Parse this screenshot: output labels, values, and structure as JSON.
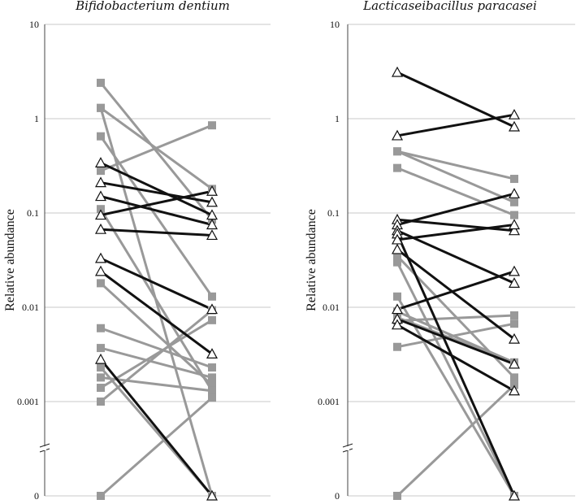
{
  "chart_data": [
    {
      "type": "line",
      "title": "Bifidobacterium dentium",
      "xlabel": "",
      "ylabel": "Relative abundance",
      "y_scale": "log (broken axis, zero shown below break)",
      "y_ticks": [
        "0",
        "0.001",
        "0.01",
        "0.1",
        "1",
        "10"
      ],
      "ylim": [
        0,
        10
      ],
      "grid": true,
      "colors": {
        "triangle_series": "#111111",
        "square_series": "#999999",
        "marker_fill": "#ffffff"
      },
      "series": [
        {
          "marker": "square",
          "values": [
            2.4,
            0.085
          ]
        },
        {
          "marker": "square",
          "values": [
            1.3,
            0
          ]
        },
        {
          "marker": "square",
          "values": [
            1.3,
            0.18
          ]
        },
        {
          "marker": "square",
          "values": [
            0.65,
            0.013
          ]
        },
        {
          "marker": "square",
          "values": [
            0.28,
            0.85
          ]
        },
        {
          "marker": "square",
          "values": [
            0.11,
            0.0013
          ]
        },
        {
          "marker": "square",
          "values": [
            0.018,
            0.0015
          ]
        },
        {
          "marker": "square",
          "values": [
            0.006,
            0.0023
          ]
        },
        {
          "marker": "square",
          "values": [
            0.0037,
            0.0018
          ]
        },
        {
          "marker": "square",
          "values": [
            0.0023,
            0
          ]
        },
        {
          "marker": "square",
          "values": [
            0.0018,
            0.0013
          ]
        },
        {
          "marker": "square",
          "values": [
            0.0014,
            0.0073
          ]
        },
        {
          "marker": "square",
          "values": [
            0.001,
            0.0093
          ]
        },
        {
          "marker": "square",
          "values": [
            0,
            0.0011
          ]
        },
        {
          "marker": "triangle",
          "values": [
            0.34,
            0.095
          ]
        },
        {
          "marker": "triangle",
          "values": [
            0.21,
            0.13
          ]
        },
        {
          "marker": "triangle",
          "values": [
            0.15,
            0.075
          ]
        },
        {
          "marker": "triangle",
          "values": [
            0.095,
            0.17
          ]
        },
        {
          "marker": "triangle",
          "values": [
            0.067,
            0.058
          ]
        },
        {
          "marker": "triangle",
          "values": [
            0.033,
            0.0095
          ]
        },
        {
          "marker": "triangle",
          "values": [
            0.024,
            0.0032
          ]
        },
        {
          "marker": "triangle",
          "values": [
            0.0028,
            0
          ]
        }
      ]
    },
    {
      "type": "line",
      "title": "Lacticaseibacillus paracasei",
      "xlabel": "",
      "ylabel": "Relative abundance",
      "y_scale": "log (broken axis, zero shown below break)",
      "y_ticks": [
        "0",
        "0.001",
        "0.01",
        "0.1",
        "1",
        "10"
      ],
      "ylim": [
        0,
        10
      ],
      "grid": true,
      "colors": {
        "triangle_series": "#111111",
        "square_series": "#999999",
        "marker_fill": "#ffffff"
      },
      "series": [
        {
          "marker": "square",
          "values": [
            0.45,
            0.23
          ]
        },
        {
          "marker": "square",
          "values": [
            0.45,
            0.13
          ]
        },
        {
          "marker": "square",
          "values": [
            0.3,
            0.095
          ]
        },
        {
          "marker": "square",
          "values": [
            0.035,
            0.0018
          ]
        },
        {
          "marker": "square",
          "values": [
            0.03,
            0
          ]
        },
        {
          "marker": "square",
          "values": [
            0.013,
            0
          ]
        },
        {
          "marker": "square",
          "values": [
            0.009,
            0.0026
          ]
        },
        {
          "marker": "square",
          "values": [
            0.0078,
            0.0026
          ]
        },
        {
          "marker": "square",
          "values": [
            0.0072,
            0.0082
          ]
        },
        {
          "marker": "square",
          "values": [
            0.0038,
            0.0067
          ]
        },
        {
          "marker": "square",
          "values": [
            0,
            0.0015
          ]
        },
        {
          "marker": "triangle",
          "values": [
            3.1,
            0.82
          ]
        },
        {
          "marker": "triangle",
          "values": [
            0.66,
            1.1
          ]
        },
        {
          "marker": "triangle",
          "values": [
            0.085,
            0.065
          ]
        },
        {
          "marker": "triangle",
          "values": [
            0.075,
            0.16
          ]
        },
        {
          "marker": "triangle",
          "values": [
            0.065,
            0.018
          ]
        },
        {
          "marker": "triangle",
          "values": [
            0.06,
            0
          ]
        },
        {
          "marker": "triangle",
          "values": [
            0.052,
            0.075
          ]
        },
        {
          "marker": "triangle",
          "values": [
            0.041,
            0.0046
          ]
        },
        {
          "marker": "triangle",
          "values": [
            0.0095,
            0.024
          ]
        },
        {
          "marker": "triangle",
          "values": [
            0.0075,
            0.0025
          ]
        },
        {
          "marker": "triangle",
          "values": [
            0.0065,
            0.0013
          ]
        }
      ]
    }
  ]
}
